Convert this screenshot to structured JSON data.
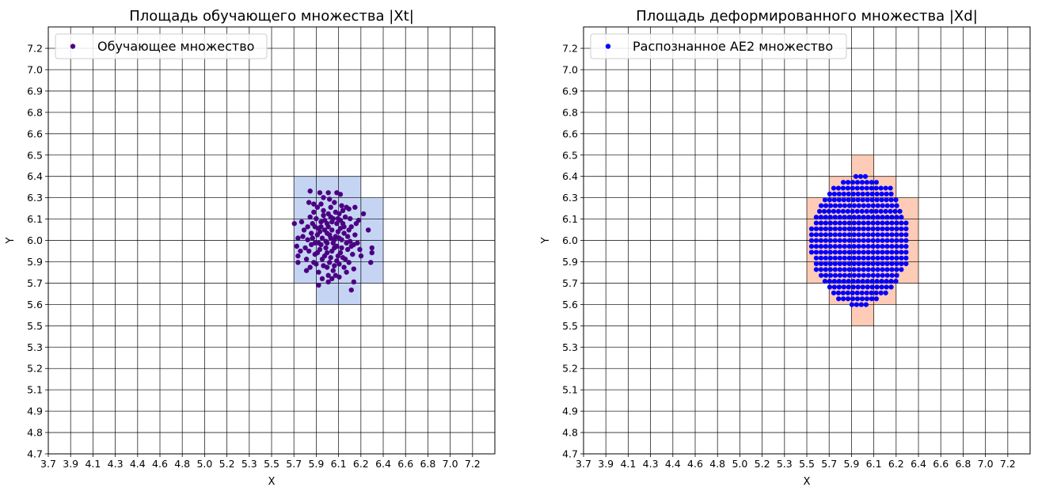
{
  "chart_data": [
    {
      "type": "scatter",
      "title": "Площадь обучающего множества |Xt|",
      "xlabel": "X",
      "ylabel": "Y",
      "xlim": [
        3.7,
        7.384
      ],
      "ylim": [
        4.7,
        7.332
      ],
      "grid": true,
      "legend_placement": "top-left",
      "x_tick_values_start": 3.7,
      "x_tick_step": 0.18421,
      "y_tick_values_start": 4.7,
      "y_tick_step": 0.13158,
      "x_tick_labels": [
        "3.7",
        "3.9",
        "4.1",
        "4.3",
        "4.4",
        "4.6",
        "4.8",
        "5.0",
        "5.2",
        "5.3",
        "5.5",
        "5.7",
        "5.9",
        "6.1",
        "6.2",
        "6.4",
        "6.6",
        "6.8",
        "7.0",
        "7.2"
      ],
      "y_tick_labels": [
        "4.7",
        "4.8",
        "4.9",
        "5.1",
        "5.2",
        "5.3",
        "5.5",
        "5.6",
        "5.7",
        "5.9",
        "6.0",
        "6.1",
        "6.3",
        "6.4",
        "6.5",
        "6.6",
        "6.8",
        "6.9",
        "7.0",
        "7.2"
      ],
      "regions_color": "#c6d4f4",
      "regions": [
        {
          "x": [
            5.726,
            6.279
          ],
          "y": [
            5.753,
            6.411
          ]
        },
        {
          "x": [
            6.279,
            6.463
          ],
          "y": [
            5.753,
            6.279
          ]
        },
        {
          "x": [
            5.911,
            6.279
          ],
          "y": [
            5.621,
            5.753
          ]
        }
      ],
      "series": [
        {
          "name": "Обучающее множество",
          "color": "#4b0082",
          "points": [
            [
              5.86,
              6.32
            ],
            [
              5.94,
              6.31
            ],
            [
              6.01,
              6.31
            ],
            [
              6.08,
              6.31
            ],
            [
              6.11,
              6.3
            ],
            [
              5.85,
              6.25
            ],
            [
              5.73,
              6.12
            ],
            [
              5.76,
              6.03
            ],
            [
              5.75,
              5.98
            ],
            [
              5.76,
              5.92
            ],
            [
              5.76,
              5.88
            ],
            [
              6.37,
              5.97
            ],
            [
              6.37,
              5.94
            ],
            [
              6.36,
              5.88
            ],
            [
              6.34,
              6.08
            ],
            [
              6.3,
              6.18
            ],
            [
              6.28,
              5.92
            ],
            [
              6.22,
              5.76
            ],
            [
              6.2,
              5.71
            ],
            [
              5.93,
              5.74
            ],
            [
              6.01,
              5.76
            ],
            [
              6.23,
              6.22
            ],
            [
              6.16,
              6.22
            ],
            [
              5.95,
              6.1
            ],
            [
              6.02,
              6.05
            ],
            [
              6.08,
              5.98
            ],
            [
              5.98,
              5.92
            ],
            [
              6.12,
              6.02
            ],
            [
              5.9,
              6.0
            ],
            [
              6.05,
              6.15
            ],
            [
              6.0,
              5.85
            ],
            [
              6.15,
              5.9
            ],
            [
              5.88,
              6.12
            ],
            [
              6.1,
              6.18
            ],
            [
              5.93,
              5.82
            ],
            [
              6.18,
              6.08
            ],
            [
              5.85,
              5.95
            ],
            [
              6.03,
              6.22
            ],
            [
              6.2,
              5.98
            ],
            [
              5.97,
              6.2
            ],
            [
              6.07,
              5.8
            ],
            [
              5.92,
              6.05
            ],
            [
              6.13,
              6.12
            ],
            [
              6.0,
              6.0
            ],
            [
              6.04,
              5.95
            ],
            [
              5.96,
              6.03
            ],
            [
              6.09,
              6.07
            ],
            [
              5.99,
              5.97
            ],
            [
              6.06,
              6.02
            ],
            [
              6.01,
              6.1
            ],
            [
              5.94,
              5.96
            ],
            [
              6.11,
              5.94
            ],
            [
              5.87,
              6.06
            ],
            [
              6.16,
              6.0
            ],
            [
              6.02,
              5.88
            ],
            [
              5.91,
              6.15
            ],
            [
              6.14,
              5.85
            ],
            [
              5.84,
              6.02
            ],
            [
              6.06,
              6.25
            ],
            [
              5.96,
              5.78
            ],
            [
              6.19,
              6.15
            ],
            [
              5.89,
              5.88
            ],
            [
              6.23,
              6.05
            ],
            [
              5.81,
              6.08
            ],
            [
              6.08,
              6.12
            ],
            [
              5.98,
              6.14
            ],
            [
              6.03,
              5.91
            ],
            [
              5.93,
              6.09
            ],
            [
              6.12,
              5.97
            ],
            [
              6.0,
              6.06
            ],
            [
              5.95,
              5.99
            ],
            [
              6.07,
              6.04
            ],
            [
              6.04,
              6.08
            ],
            [
              5.9,
              5.93
            ],
            [
              6.17,
              6.04
            ],
            [
              5.86,
              6.16
            ],
            [
              6.1,
              5.87
            ],
            [
              6.21,
              5.93
            ],
            [
              5.83,
              5.9
            ],
            [
              6.01,
              6.18
            ],
            [
              6.13,
              6.2
            ],
            [
              5.92,
              6.22
            ],
            [
              6.05,
              5.83
            ],
            [
              5.97,
              5.86
            ],
            [
              6.09,
              5.92
            ],
            [
              6.24,
              6.12
            ],
            [
              5.82,
              5.97
            ],
            [
              6.18,
              5.88
            ],
            [
              6.02,
              6.27
            ],
            [
              5.89,
              6.19
            ],
            [
              6.15,
              6.16
            ],
            [
              5.95,
              6.24
            ],
            [
              6.11,
              6.09
            ],
            [
              6.06,
              5.97
            ],
            [
              5.99,
              6.01
            ],
            [
              6.03,
              6.03
            ],
            [
              5.94,
              6.07
            ],
            [
              6.08,
              5.89
            ],
            [
              6.14,
              6.06
            ],
            [
              5.88,
              6.03
            ],
            [
              6.0,
              5.94
            ],
            [
              6.04,
              6.13
            ],
            [
              5.91,
              5.87
            ],
            [
              6.19,
              6.01
            ],
            [
              5.86,
              5.85
            ],
            [
              6.12,
              6.23
            ],
            [
              5.97,
              6.17
            ],
            [
              6.07,
              6.19
            ],
            [
              6.22,
              5.99
            ],
            [
              5.84,
              6.1
            ],
            [
              6.01,
              5.8
            ],
            [
              6.16,
              5.82
            ],
            [
              5.93,
              6.0
            ],
            [
              6.1,
              6.03
            ],
            [
              5.96,
              5.9
            ],
            [
              6.05,
              6.0
            ],
            [
              6.09,
              6.15
            ],
            [
              5.9,
              6.1
            ],
            [
              6.13,
              5.91
            ],
            [
              6.0,
              6.12
            ],
            [
              5.98,
              6.08
            ],
            [
              6.06,
              5.86
            ],
            [
              6.2,
              6.1
            ],
            [
              5.87,
              5.99
            ],
            [
              6.17,
              5.96
            ],
            [
              6.03,
              6.16
            ],
            [
              5.92,
              5.94
            ],
            [
              6.11,
              6.14
            ],
            [
              6.25,
              6.0
            ],
            [
              5.8,
              6.04
            ],
            [
              6.04,
              5.78
            ],
            [
              5.95,
              6.13
            ],
            [
              6.14,
              6.1
            ],
            [
              6.26,
              6.14
            ],
            [
              5.79,
              6.13
            ],
            [
              6.22,
              5.84
            ],
            [
              5.83,
              5.83
            ],
            [
              6.1,
              5.79
            ],
            [
              5.89,
              6.24
            ],
            [
              6.18,
              6.21
            ],
            [
              5.97,
              6.28
            ],
            [
              6.27,
              5.96
            ],
            [
              5.78,
              5.95
            ]
          ]
        }
      ]
    },
    {
      "type": "scatter",
      "title": "Площадь деформированного множества |Xd|",
      "xlabel": "X",
      "ylabel": "Y",
      "xlim": [
        3.7,
        7.384
      ],
      "ylim": [
        4.7,
        7.332
      ],
      "grid": true,
      "legend_placement": "top-left",
      "x_tick_values_start": 3.7,
      "x_tick_step": 0.18421,
      "y_tick_values_start": 4.7,
      "y_tick_step": 0.13158,
      "x_tick_labels": [
        "3.7",
        "3.9",
        "4.1",
        "4.3",
        "4.4",
        "4.6",
        "4.8",
        "5.0",
        "5.2",
        "5.3",
        "5.5",
        "5.7",
        "5.9",
        "6.1",
        "6.2",
        "6.4",
        "6.6",
        "6.8",
        "7.0",
        "7.2"
      ],
      "y_tick_labels": [
        "4.7",
        "4.8",
        "4.9",
        "5.1",
        "5.2",
        "5.3",
        "5.5",
        "5.6",
        "5.7",
        "5.9",
        "6.0",
        "6.1",
        "6.3",
        "6.4",
        "6.5",
        "6.6",
        "6.8",
        "6.9",
        "7.0",
        "7.2"
      ],
      "regions_color": "#fdcbb6",
      "regions": [
        {
          "x": [
            5.911,
            6.095
          ],
          "y": [
            5.489,
            6.542
          ]
        },
        {
          "x": [
            5.726,
            6.279
          ],
          "y": [
            5.621,
            6.411
          ]
        },
        {
          "x": [
            5.542,
            6.463
          ],
          "y": [
            5.753,
            6.279
          ]
        }
      ],
      "series": [
        {
          "name": "Распознанное AE2 множество",
          "color": "#0000ff",
          "lattice_x_step": 0.039,
          "lattice_rows": [
            [
              6.41,
              5.947,
              6.025
            ],
            [
              6.374,
              5.843,
              6.136
            ],
            [
              6.338,
              5.764,
              6.248
            ],
            [
              6.302,
              5.731,
              6.248
            ],
            [
              6.266,
              5.692,
              6.287
            ],
            [
              6.23,
              5.66,
              6.319
            ],
            [
              6.195,
              5.647,
              6.319
            ],
            [
              6.159,
              5.62,
              6.359
            ],
            [
              6.123,
              5.62,
              6.365
            ],
            [
              6.087,
              5.581,
              6.365
            ],
            [
              6.051,
              5.581,
              6.398
            ],
            [
              6.015,
              5.581,
              6.398
            ],
            [
              5.979,
              5.581,
              6.398
            ],
            [
              5.943,
              5.581,
              6.365
            ],
            [
              5.907,
              5.62,
              6.365
            ],
            [
              5.872,
              5.62,
              6.365
            ],
            [
              5.836,
              5.62,
              6.326
            ],
            [
              5.8,
              5.66,
              6.319
            ],
            [
              5.764,
              5.692,
              6.287
            ],
            [
              5.728,
              5.731,
              6.248
            ],
            [
              5.692,
              5.764,
              6.213
            ],
            [
              5.656,
              5.804,
              6.136
            ],
            [
              5.62,
              5.914,
              6.058
            ]
          ]
        }
      ]
    }
  ]
}
